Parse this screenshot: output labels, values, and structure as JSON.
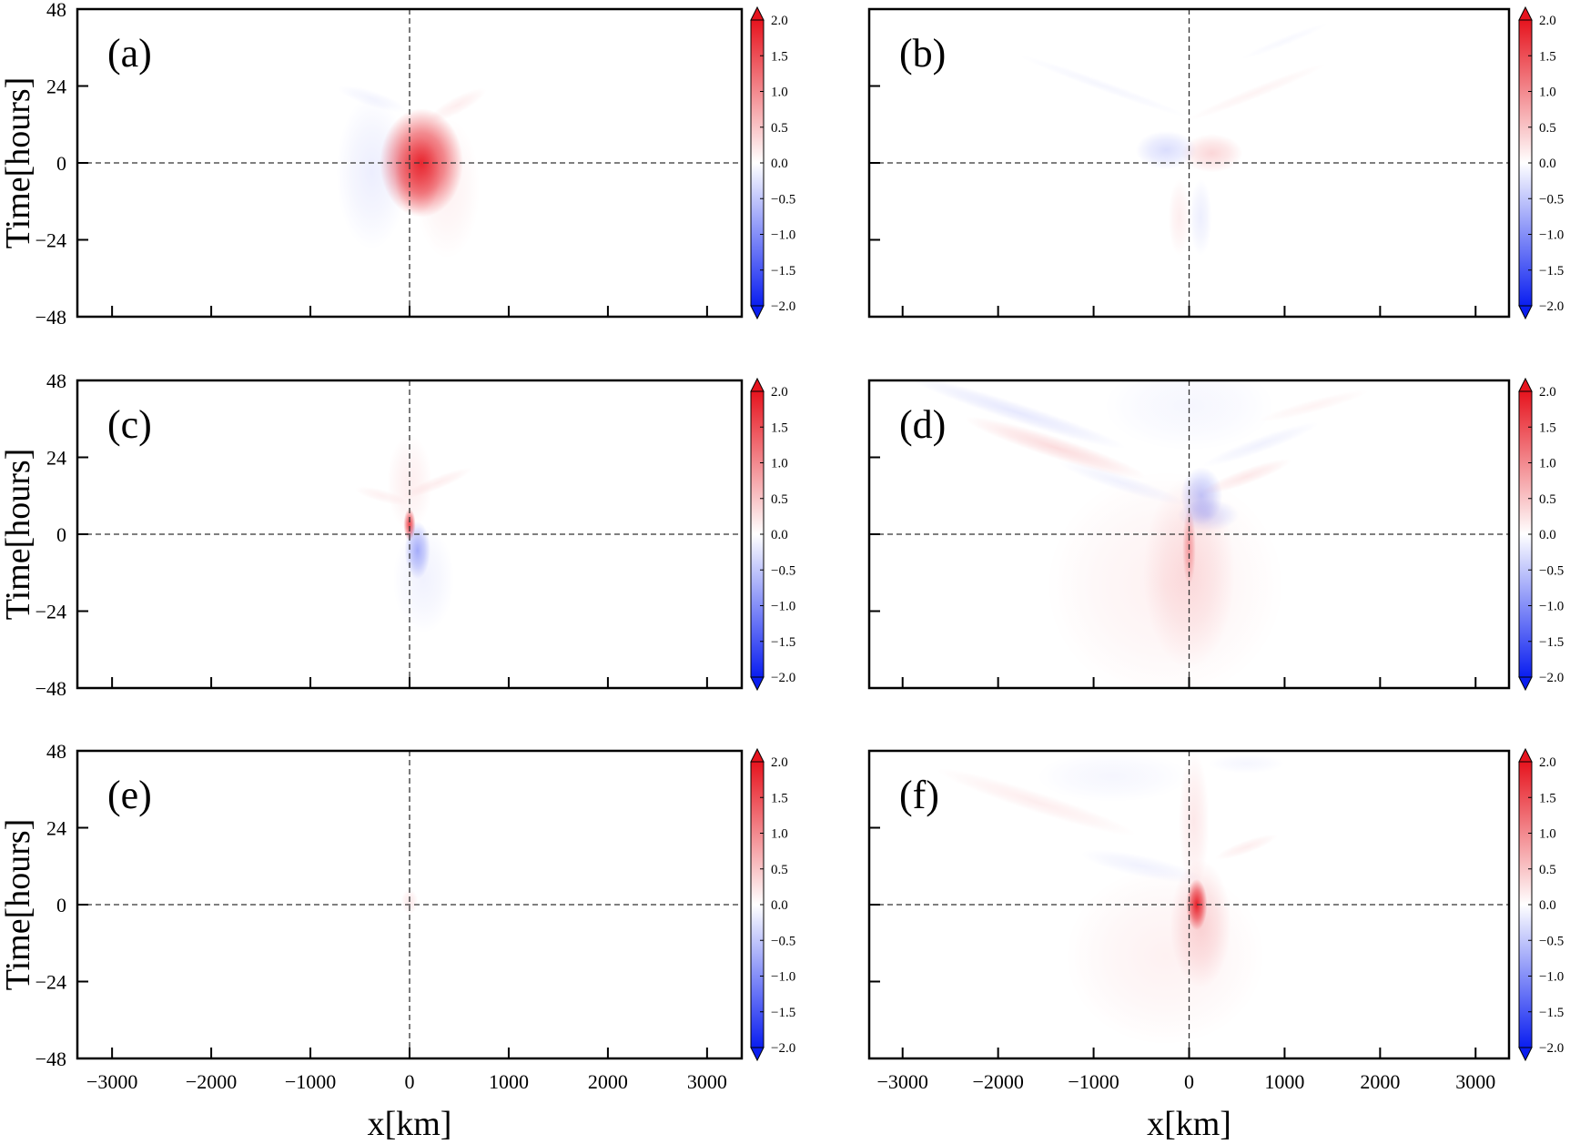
{
  "chart_data": {
    "type": "heatmap",
    "layout": "3 rows x 2 columns of filled-contour panels, each with its own colorbar",
    "xlabel": "x[km]",
    "ylabel": "Time[hours]",
    "xlim": [
      -3350,
      3350
    ],
    "ylim": [
      -48,
      48
    ],
    "xticks": [
      -3000,
      -2000,
      -1000,
      0,
      1000,
      2000,
      3000
    ],
    "yticks": [
      -48,
      -24,
      0,
      24,
      48
    ],
    "xtick_labels": [
      "−3000",
      "−2000",
      "−1000",
      "0",
      "1000",
      "2000",
      "3000"
    ],
    "ytick_labels": [
      "−48",
      "−24",
      "0",
      "24",
      "48"
    ],
    "reference_lines": {
      "x": 0,
      "y": 0,
      "style": "dashed"
    },
    "colorbar": {
      "range": [
        -2.0,
        2.0
      ],
      "ticks": [
        2.0,
        1.5,
        1.0,
        0.5,
        0.0,
        -0.5,
        -1.0,
        -1.5,
        -2.0
      ],
      "tick_labels": [
        "2.0",
        "1.5",
        "1.0",
        "0.5",
        "0.0",
        "−0.5",
        "−1.0",
        "−1.5",
        "−2.0"
      ],
      "colormap": "bwr",
      "extend": "both",
      "negative_color": "#0a1ef0",
      "positive_color": "#e6141e"
    },
    "panels": [
      {
        "label": "(a)",
        "features": [
          {
            "sign": "pos",
            "x": 120,
            "t": 0,
            "rx": 420,
            "rt": 17,
            "peak": 1.8
          },
          {
            "sign": "pos",
            "x": 80,
            "t": -4,
            "rx": 230,
            "rt": 12,
            "peak": 0.6
          },
          {
            "sign": "neg",
            "x": -380,
            "t": -3,
            "rx": 360,
            "rt": 24,
            "peak": 0.15
          },
          {
            "sign": "pos",
            "x": 380,
            "t": -8,
            "rx": 330,
            "rt": 22,
            "peak": 0.12
          },
          {
            "sign": "pos",
            "x": 480,
            "t": 18,
            "rx": 330,
            "rt": 2.6,
            "rot": -28,
            "peak": 0.15
          },
          {
            "sign": "neg",
            "x": -380,
            "t": 20,
            "rx": 360,
            "rt": 2.5,
            "rot": 18,
            "peak": 0.1
          }
        ]
      },
      {
        "label": "(b)",
        "features": [
          {
            "sign": "pos",
            "x": 240,
            "t": 3,
            "rx": 320,
            "rt": 6,
            "peak": 0.35
          },
          {
            "sign": "neg",
            "x": -240,
            "t": 4,
            "rx": 320,
            "rt": 6,
            "peak": 0.3
          },
          {
            "sign": "pos",
            "x": -100,
            "t": -17,
            "rx": 120,
            "rt": 12,
            "peak": 0.15
          },
          {
            "sign": "neg",
            "x": 120,
            "t": -17,
            "rx": 120,
            "rt": 12,
            "peak": 0.15
          },
          {
            "sign": "neg",
            "x": -900,
            "t": 24,
            "rx": 950,
            "rt": 1.6,
            "rot": 20,
            "peak": 0.08
          },
          {
            "sign": "pos",
            "x": 700,
            "t": 22,
            "rx": 800,
            "rt": 1.8,
            "rot": -22,
            "peak": 0.1
          },
          {
            "sign": "neg",
            "x": 1000,
            "t": 38,
            "rx": 500,
            "rt": 1.4,
            "rot": -22,
            "peak": 0.06
          }
        ]
      },
      {
        "label": "(c)",
        "features": [
          {
            "sign": "pos",
            "x": 0,
            "t": 3,
            "rx": 60,
            "rt": 5,
            "peak": 1.6
          },
          {
            "sign": "pos",
            "x": 0,
            "t": 16,
            "rx": 230,
            "rt": 15,
            "peak": 0.15
          },
          {
            "sign": "pos",
            "x": 280,
            "t": 16,
            "rx": 380,
            "rt": 2,
            "rot": -22,
            "peak": 0.15
          },
          {
            "sign": "pos",
            "x": -280,
            "t": 12,
            "rx": 280,
            "rt": 2,
            "rot": 15,
            "peak": 0.12
          },
          {
            "sign": "neg",
            "x": 80,
            "t": -5,
            "rx": 130,
            "rt": 9,
            "peak": 0.7
          },
          {
            "sign": "neg",
            "x": 140,
            "t": -14,
            "rx": 310,
            "rt": 17,
            "peak": 0.12
          }
        ]
      },
      {
        "label": "(d)",
        "features": [
          {
            "sign": "pos",
            "x": -250,
            "t": -16,
            "rx": 1250,
            "rt": 36,
            "peak": 0.12
          },
          {
            "sign": "pos",
            "x": 0,
            "t": -12,
            "rx": 480,
            "rt": 30,
            "peak": 0.25
          },
          {
            "sign": "pos",
            "x": 0,
            "t": -4,
            "rx": 70,
            "rt": 12,
            "peak": 0.7
          },
          {
            "sign": "neg",
            "x": 130,
            "t": 12,
            "rx": 220,
            "rt": 9,
            "peak": 0.5
          },
          {
            "sign": "neg",
            "x": 200,
            "t": 6,
            "rx": 320,
            "rt": 5,
            "peak": 0.3
          },
          {
            "sign": "neg",
            "x": 0,
            "t": 40,
            "rx": 900,
            "rt": 14,
            "peak": 0.08
          },
          {
            "sign": "pos",
            "x": -1400,
            "t": 27,
            "rx": 1000,
            "rt": 3.4,
            "rot": 18,
            "peak": 0.3
          },
          {
            "sign": "neg",
            "x": -1800,
            "t": 38,
            "rx": 1200,
            "rt": 3,
            "rot": 18,
            "peak": 0.2
          },
          {
            "sign": "neg",
            "x": -700,
            "t": 16,
            "rx": 700,
            "rt": 2.6,
            "rot": 18,
            "peak": 0.12
          },
          {
            "sign": "pos",
            "x": 600,
            "t": 18,
            "rx": 500,
            "rt": 2.4,
            "rot": -20,
            "peak": 0.2
          },
          {
            "sign": "neg",
            "x": 750,
            "t": 28,
            "rx": 650,
            "rt": 2.4,
            "rot": -20,
            "peak": 0.12
          },
          {
            "sign": "pos",
            "x": 1300,
            "t": 40,
            "rx": 600,
            "rt": 2,
            "rot": -15,
            "peak": 0.1
          }
        ]
      },
      {
        "label": "(e)",
        "features": [
          {
            "sign": "pos",
            "x": 0,
            "t": 1,
            "rx": 85,
            "rt": 4,
            "peak": 0.2
          }
        ]
      },
      {
        "label": "(f)",
        "features": [
          {
            "sign": "pos",
            "x": 80,
            "t": 0,
            "rx": 110,
            "rt": 8,
            "peak": 1.9
          },
          {
            "sign": "pos",
            "x": 120,
            "t": -6,
            "rx": 320,
            "rt": 20,
            "peak": 0.35
          },
          {
            "sign": "pos",
            "x": -250,
            "t": -16,
            "rx": 1050,
            "rt": 28,
            "peak": 0.12
          },
          {
            "sign": "pos",
            "x": 50,
            "t": 26,
            "rx": 160,
            "rt": 22,
            "peak": 0.2
          },
          {
            "sign": "pos",
            "x": -1600,
            "t": 32,
            "rx": 1100,
            "rt": 3.2,
            "rot": 18,
            "peak": 0.15
          },
          {
            "sign": "neg",
            "x": -500,
            "t": 12,
            "rx": 650,
            "rt": 3.4,
            "rot": 12,
            "peak": 0.12
          },
          {
            "sign": "neg",
            "x": -800,
            "t": 40,
            "rx": 800,
            "rt": 8,
            "peak": 0.08
          },
          {
            "sign": "neg",
            "x": 600,
            "t": 44,
            "rx": 400,
            "rt": 3,
            "peak": 0.08
          },
          {
            "sign": "pos",
            "x": 600,
            "t": 18,
            "rx": 350,
            "rt": 2,
            "rot": -20,
            "peak": 0.15
          }
        ]
      }
    ]
  }
}
